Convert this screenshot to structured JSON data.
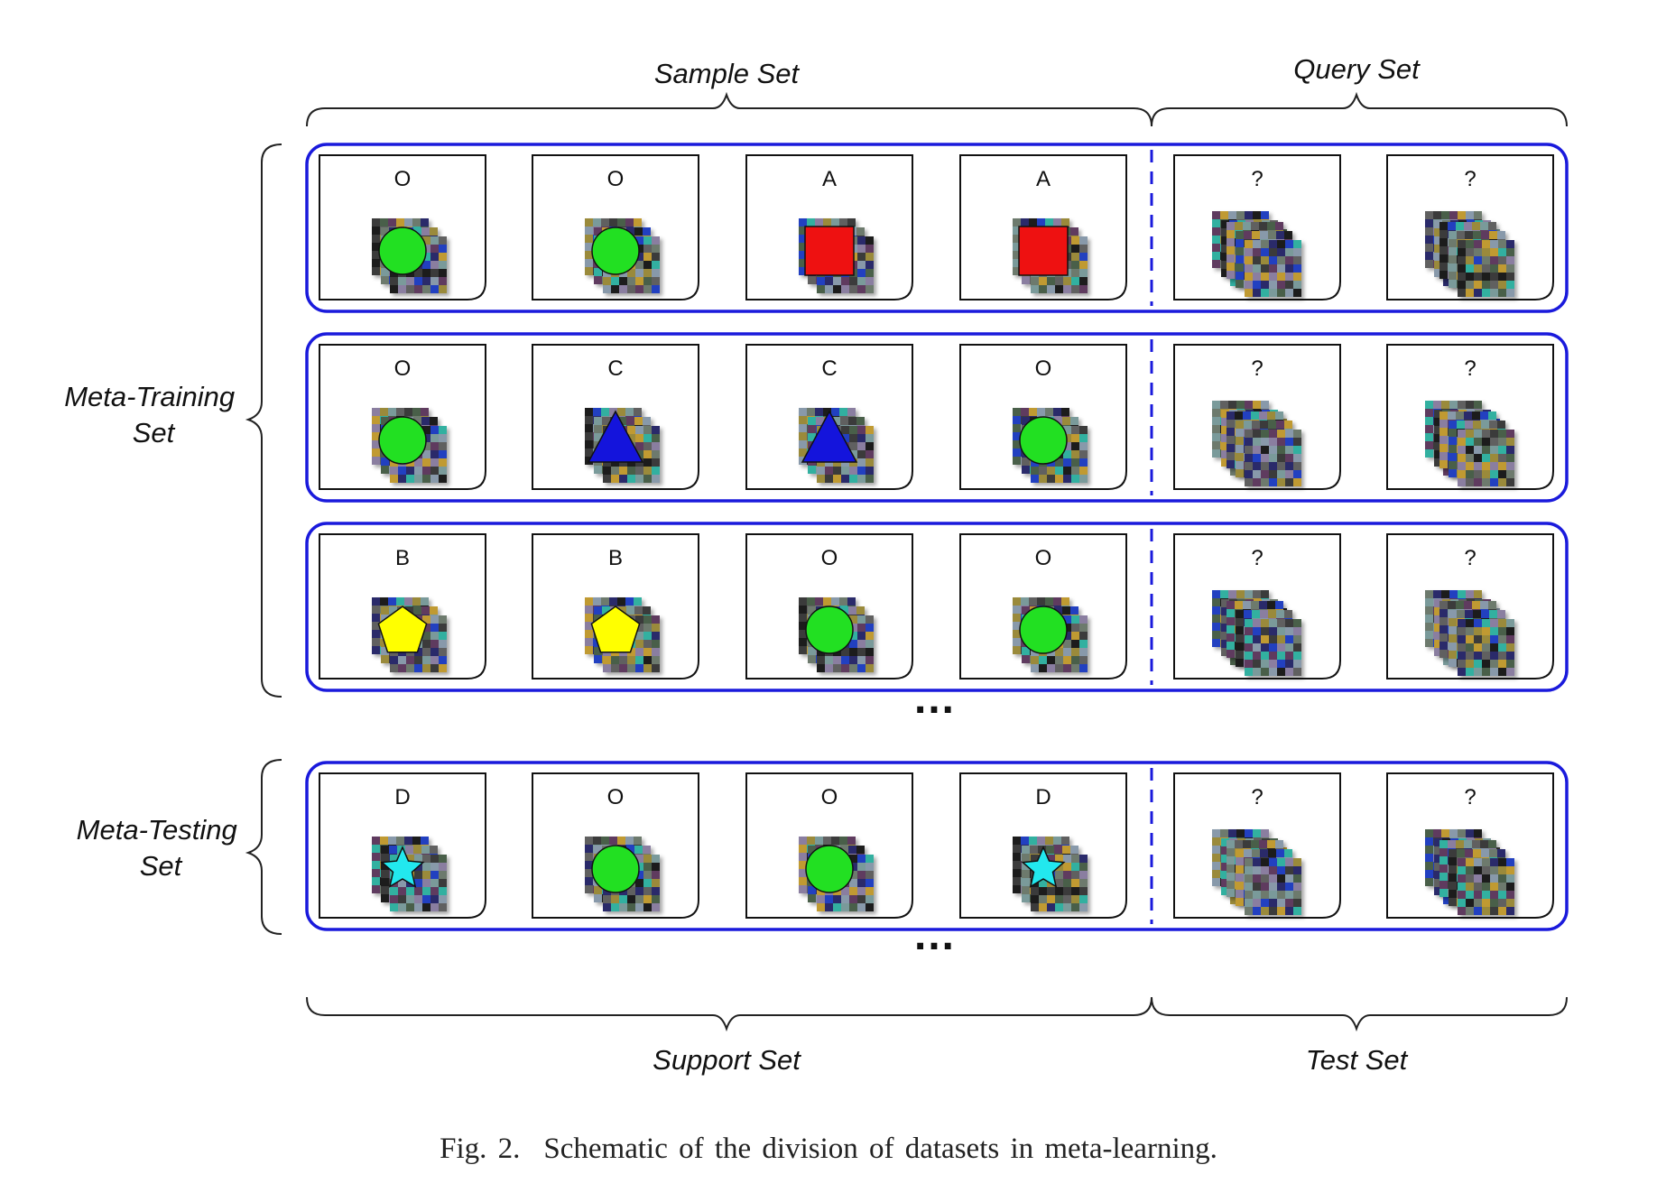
{
  "headers": {
    "sample_set": "Sample Set",
    "query_set": "Query Set",
    "support_set": "Support Set",
    "test_set": "Test Set"
  },
  "side_labels": {
    "meta_training": [
      "Meta-Training",
      "Set"
    ],
    "meta_testing": [
      "Meta-Testing",
      "Set"
    ]
  },
  "episodes": [
    {
      "group": "meta-training",
      "cards": [
        {
          "label": "O",
          "shape": "circle"
        },
        {
          "label": "O",
          "shape": "circle"
        },
        {
          "label": "A",
          "shape": "square"
        },
        {
          "label": "A",
          "shape": "square"
        },
        {
          "label": "?",
          "shape": "stack"
        },
        {
          "label": "?",
          "shape": "stack"
        }
      ]
    },
    {
      "group": "meta-training",
      "cards": [
        {
          "label": "O",
          "shape": "circle"
        },
        {
          "label": "C",
          "shape": "triangle"
        },
        {
          "label": "C",
          "shape": "triangle"
        },
        {
          "label": "O",
          "shape": "circle"
        },
        {
          "label": "?",
          "shape": "stack"
        },
        {
          "label": "?",
          "shape": "stack"
        }
      ]
    },
    {
      "group": "meta-training",
      "cards": [
        {
          "label": "B",
          "shape": "pentagon"
        },
        {
          "label": "B",
          "shape": "pentagon"
        },
        {
          "label": "O",
          "shape": "circle"
        },
        {
          "label": "O",
          "shape": "circle"
        },
        {
          "label": "?",
          "shape": "stack"
        },
        {
          "label": "?",
          "shape": "stack"
        }
      ]
    },
    {
      "group": "meta-testing",
      "cards": [
        {
          "label": "D",
          "shape": "star"
        },
        {
          "label": "O",
          "shape": "circle"
        },
        {
          "label": "O",
          "shape": "circle"
        },
        {
          "label": "D",
          "shape": "star"
        },
        {
          "label": "?",
          "shape": "stack"
        },
        {
          "label": "?",
          "shape": "stack"
        }
      ]
    }
  ],
  "ellipsis": "…",
  "colors": {
    "episode_border": "#1a1adc",
    "circle": "#22e022",
    "square": "#ee1111",
    "triangle": "#1414dc",
    "pentagon": "#ffff00",
    "star": "#22e8ee"
  },
  "caption": {
    "figure_number": "Fig. 2.",
    "text": "Schematic of the division of datasets in meta-learning."
  }
}
